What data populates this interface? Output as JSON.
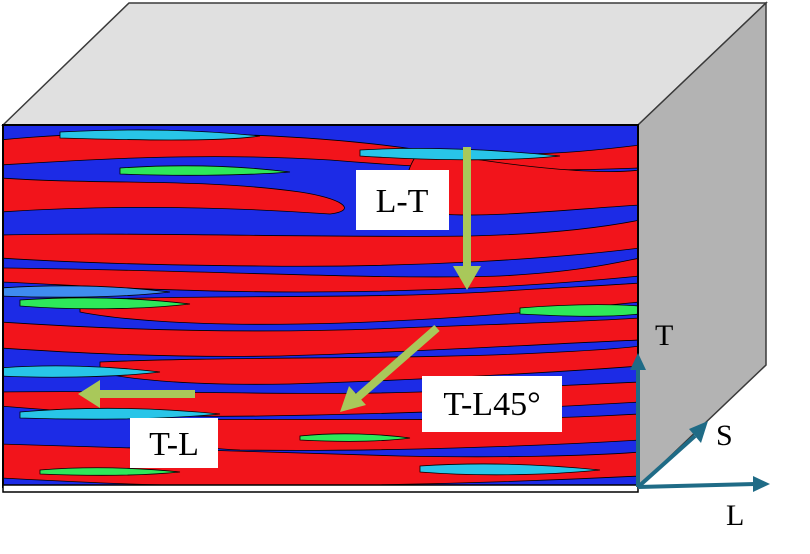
{
  "labels": {
    "lt": "L-T",
    "tl45": "T-L45°",
    "tl": "T-L"
  },
  "axes": {
    "t": "T",
    "s": "S",
    "l": "L"
  },
  "colors": {
    "box_top": "#e0e0e0",
    "box_side": "#b3b3b3",
    "box_edge": "#3a3a3a",
    "arrow_green": "#a9c85a",
    "axis_blue": "#1f6b86",
    "grain_red": "#f2141b",
    "grain_blue": "#1c2be6",
    "grain_cyan": "#28c5e8",
    "grain_green": "#2ee85a",
    "grain_light_blue": "#3f8cf0"
  }
}
